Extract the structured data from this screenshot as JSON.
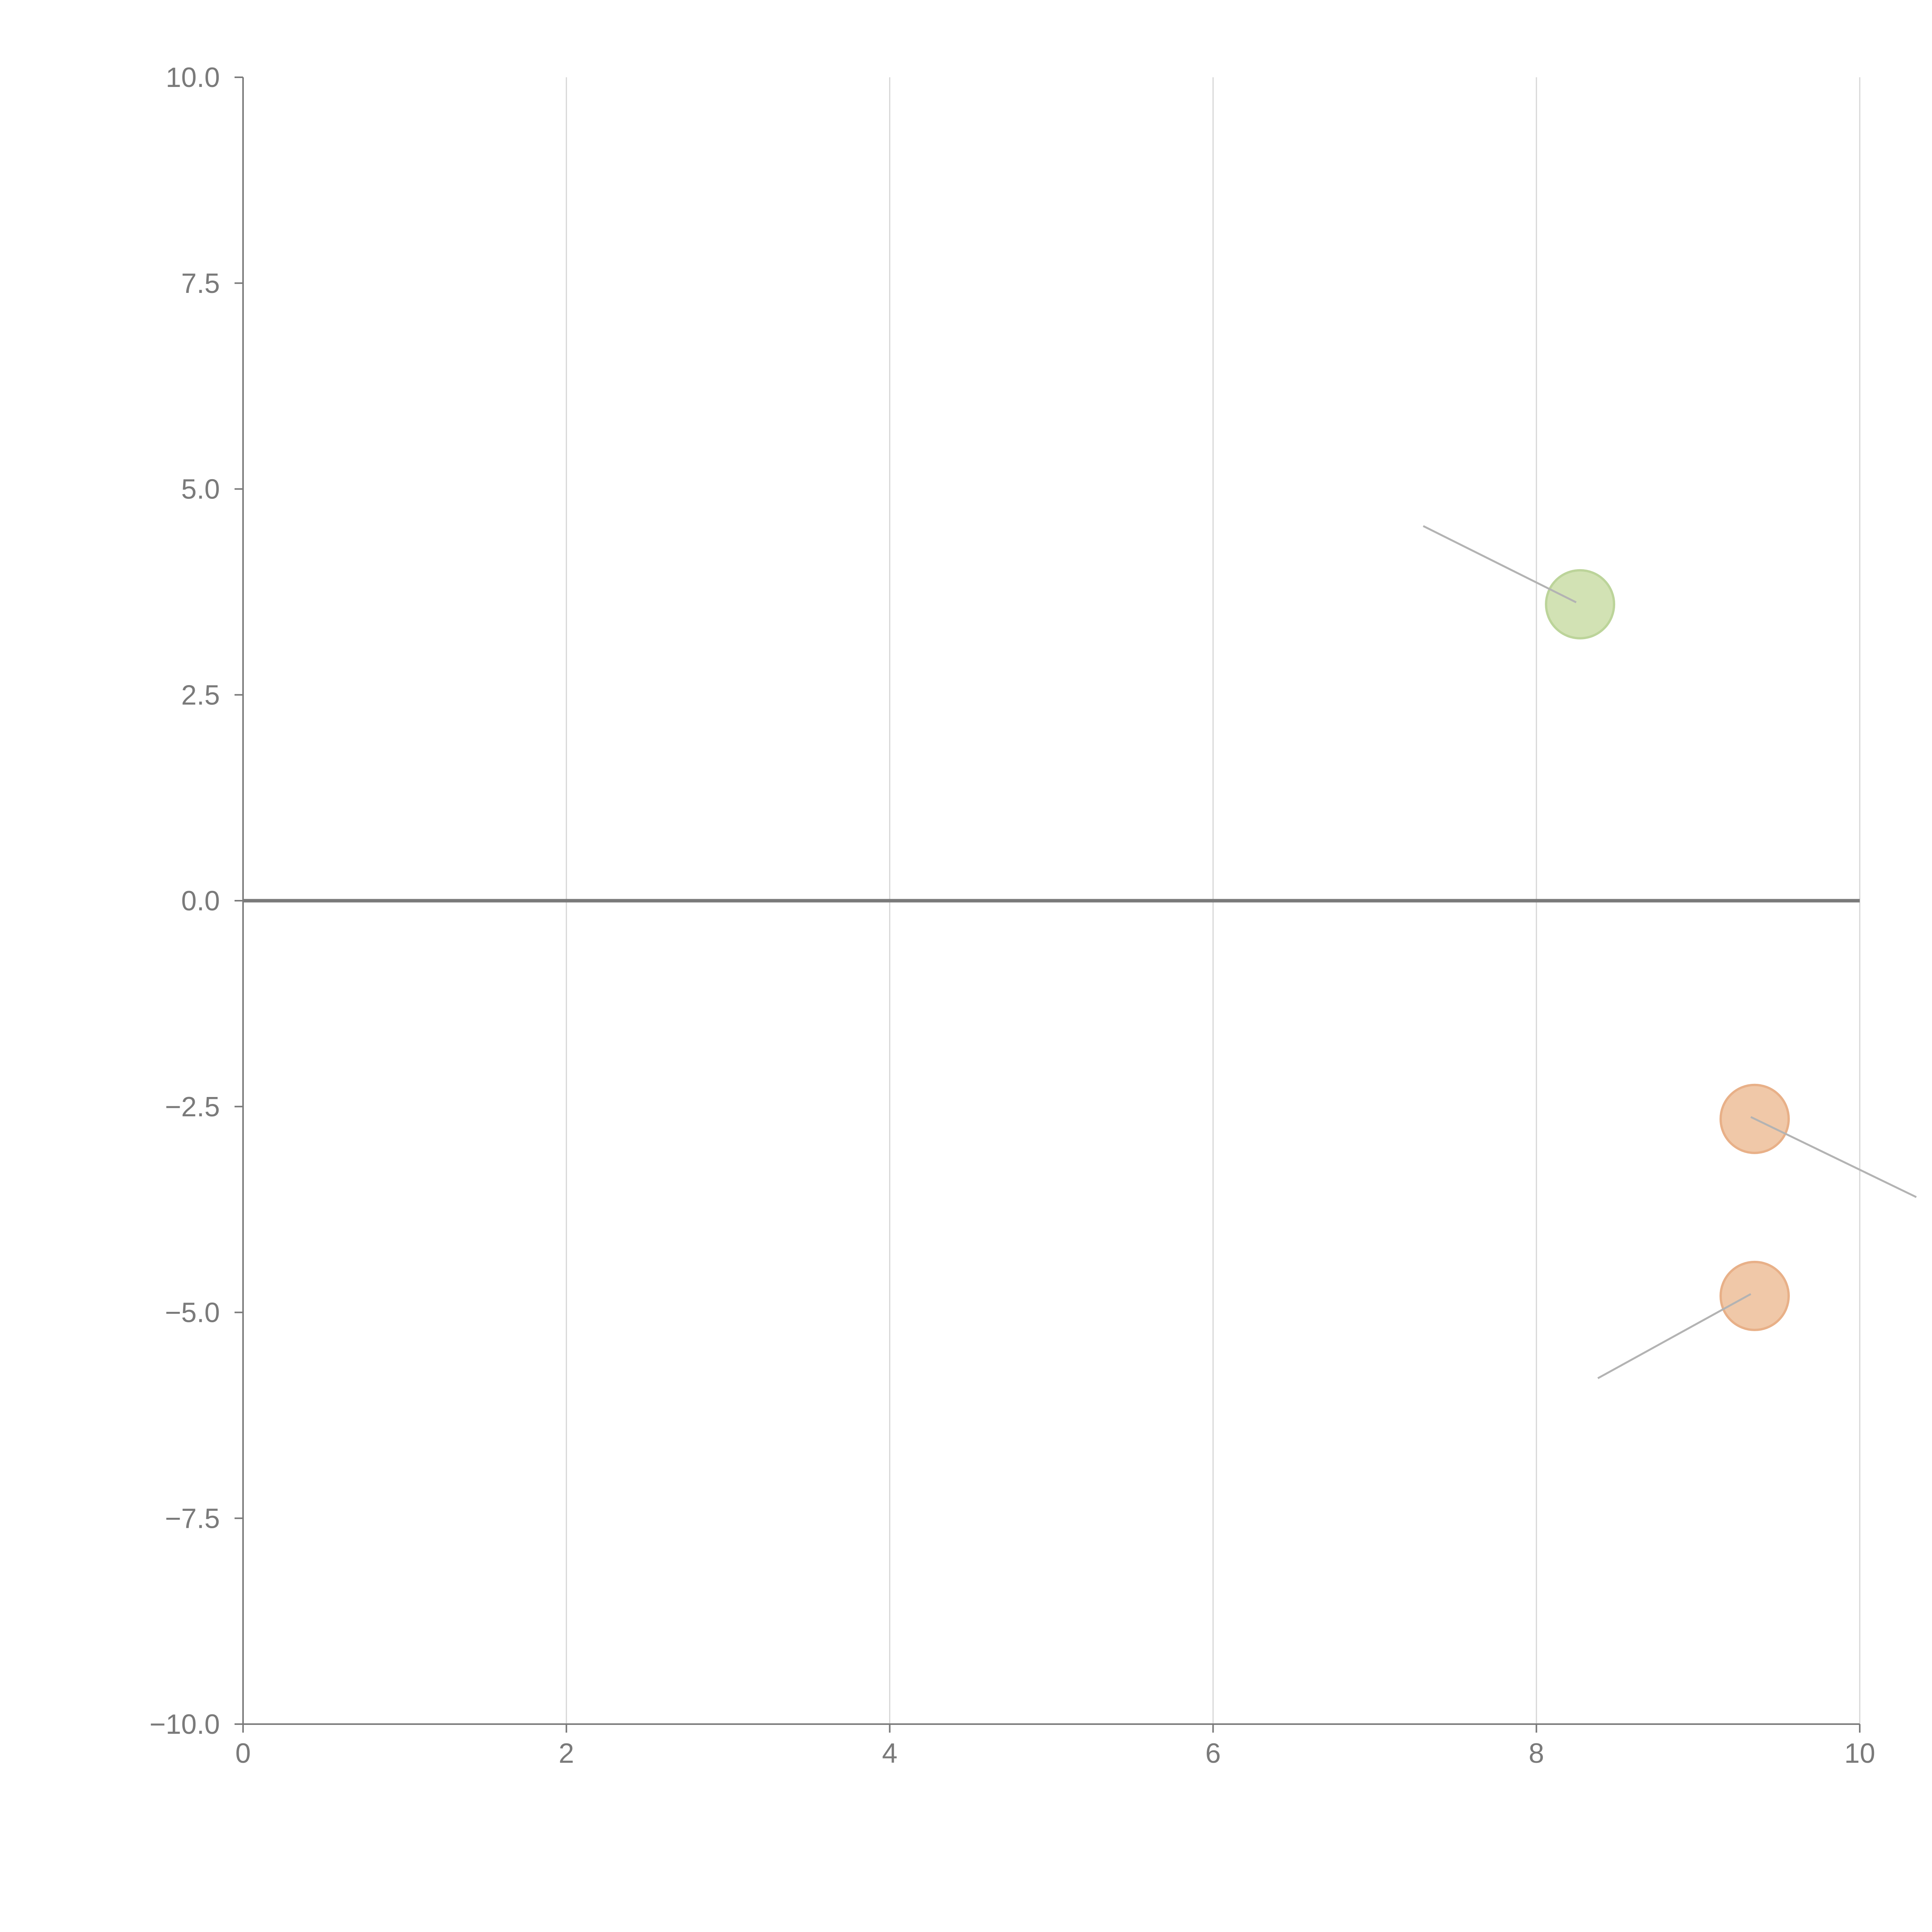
{
  "chart_data": {
    "type": "scatter",
    "title": "",
    "xlabel": "",
    "ylabel": "",
    "xlim": [
      0,
      10
    ],
    "ylim": [
      -10,
      10
    ],
    "x_ticks": [
      "0",
      "2",
      "4",
      "6",
      "8",
      "10"
    ],
    "y_ticks": [
      "10.0",
      "7.5",
      "5.0",
      "2.5",
      "0.0",
      "−2.5",
      "−5.0",
      "−7.5",
      "−10.0"
    ],
    "grid": {
      "vertical": true,
      "horizontal": false
    },
    "zero_line": true,
    "points": [
      {
        "x": 8.27,
        "y": 3.6,
        "color": "#d2e2b4",
        "stroke": "#bcd49a",
        "leader_to": {
          "x": 7.3,
          "y": 4.55
        }
      },
      {
        "x": 9.35,
        "y": -2.65,
        "color": "#f0c8a8",
        "stroke": "#e8b088",
        "leader_to": {
          "x": 10.35,
          "y": -3.6
        }
      },
      {
        "x": 9.35,
        "y": -4.8,
        "color": "#f0c8a8",
        "stroke": "#e8b088",
        "leader_to": {
          "x": 8.38,
          "y": -5.8
        }
      }
    ]
  }
}
